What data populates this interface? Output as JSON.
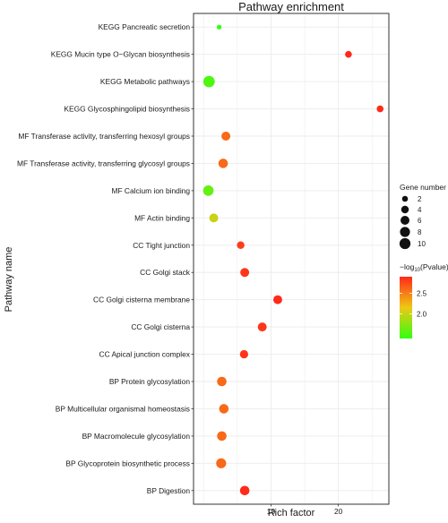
{
  "chart_data": {
    "type": "scatter",
    "title": "Pathway enrichment",
    "xlabel": "Rich factor",
    "ylabel": "Pathway name",
    "xlim": [
      -1.5,
      27.5
    ],
    "xticks": [
      "10",
      "20"
    ],
    "xtick_values": [
      10,
      20
    ],
    "grid": true,
    "categories": [
      "KEGG Pancreatic secretion",
      "KEGG Mucin type O−Glycan biosynthesis",
      "KEGG Metabolic pathways",
      "KEGG Glycosphingolipid biosynthesis",
      "MF Transferase activity, transferring hexosyl groups",
      "MF Transferase activity, transferring glycosyl groups",
      "MF Calcium ion binding",
      "MF Actin binding",
      "CC Tight junction",
      "CC Golgi stack",
      "CC Golgi cisterna membrane",
      "CC Golgi cisterna",
      "CC Apical junction complex",
      "BP Protein glycosylation",
      "BP Multicellular organismal homeostasis",
      "BP Macromolecule glycosylation",
      "BP Glycoprotein biosynthetic process",
      "BP Digestion"
    ],
    "points": [
      {
        "pathway": "KEGG Pancreatic secretion",
        "rich_factor": 2.3,
        "gene_number": 1,
        "neg_log10_p": 1.4
      },
      {
        "pathway": "KEGG Mucin type O−Glycan biosynthesis",
        "rich_factor": 21.5,
        "gene_number": 3,
        "neg_log10_p": 2.9
      },
      {
        "pathway": "KEGG Metabolic pathways",
        "rich_factor": 0.8,
        "gene_number": 11,
        "neg_log10_p": 1.5
      },
      {
        "pathway": "KEGG Glycosphingolipid biosynthesis",
        "rich_factor": 26.2,
        "gene_number": 3,
        "neg_log10_p": 2.9
      },
      {
        "pathway": "MF Transferase activity, transferring hexosyl groups",
        "rich_factor": 3.3,
        "gene_number": 6,
        "neg_log10_p": 2.6
      },
      {
        "pathway": "MF Transferase activity, transferring glycosyl groups",
        "rich_factor": 2.9,
        "gene_number": 7,
        "neg_log10_p": 2.6
      },
      {
        "pathway": "MF Calcium ion binding",
        "rich_factor": 0.7,
        "gene_number": 9,
        "neg_log10_p": 1.6
      },
      {
        "pathway": "MF Actin binding",
        "rich_factor": 1.5,
        "gene_number": 6,
        "neg_log10_p": 2.0
      },
      {
        "pathway": "CC Tight junction",
        "rich_factor": 5.5,
        "gene_number": 4,
        "neg_log10_p": 2.8
      },
      {
        "pathway": "CC Golgi stack",
        "rich_factor": 6.1,
        "gene_number": 6,
        "neg_log10_p": 2.85
      },
      {
        "pathway": "CC Golgi cisterna membrane",
        "rich_factor": 11.0,
        "gene_number": 6,
        "neg_log10_p": 2.9
      },
      {
        "pathway": "CC Golgi cisterna",
        "rich_factor": 8.7,
        "gene_number": 6,
        "neg_log10_p": 2.85
      },
      {
        "pathway": "CC Apical junction complex",
        "rich_factor": 6.0,
        "gene_number": 5,
        "neg_log10_p": 2.85
      },
      {
        "pathway": "BP Protein glycosylation",
        "rich_factor": 2.7,
        "gene_number": 7,
        "neg_log10_p": 2.6
      },
      {
        "pathway": "BP Multicellular organismal homeostasis",
        "rich_factor": 3.0,
        "gene_number": 7,
        "neg_log10_p": 2.6
      },
      {
        "pathway": "BP Macromolecule glycosylation",
        "rich_factor": 2.7,
        "gene_number": 7,
        "neg_log10_p": 2.6
      },
      {
        "pathway": "BP Glycoprotein biosynthetic process",
        "rich_factor": 2.6,
        "gene_number": 8,
        "neg_log10_p": 2.6
      },
      {
        "pathway": "BP Digestion",
        "rich_factor": 6.1,
        "gene_number": 7,
        "neg_log10_p": 2.9
      }
    ],
    "size_legend": {
      "title": "Gene number",
      "entries": [
        "2",
        "4",
        "6",
        "8",
        "10"
      ],
      "values": [
        2,
        4,
        6,
        8,
        10
      ]
    },
    "color_legend": {
      "title_prefix": "−log",
      "title_subscript": "10",
      "title_suffix": "(Pvalue)",
      "ticks": [
        "2.0",
        "2.5"
      ],
      "tick_values": [
        2.0,
        2.5
      ],
      "range": [
        1.4,
        2.9
      ],
      "low_color": "#33ff11",
      "high_color": "#ff2a1a"
    },
    "legend_position": "right",
    "colors": {
      "panel_bg": "#ffffff",
      "panel_border": "#333333",
      "grid": "#ebebeb",
      "text": "#1a1a1a"
    }
  }
}
